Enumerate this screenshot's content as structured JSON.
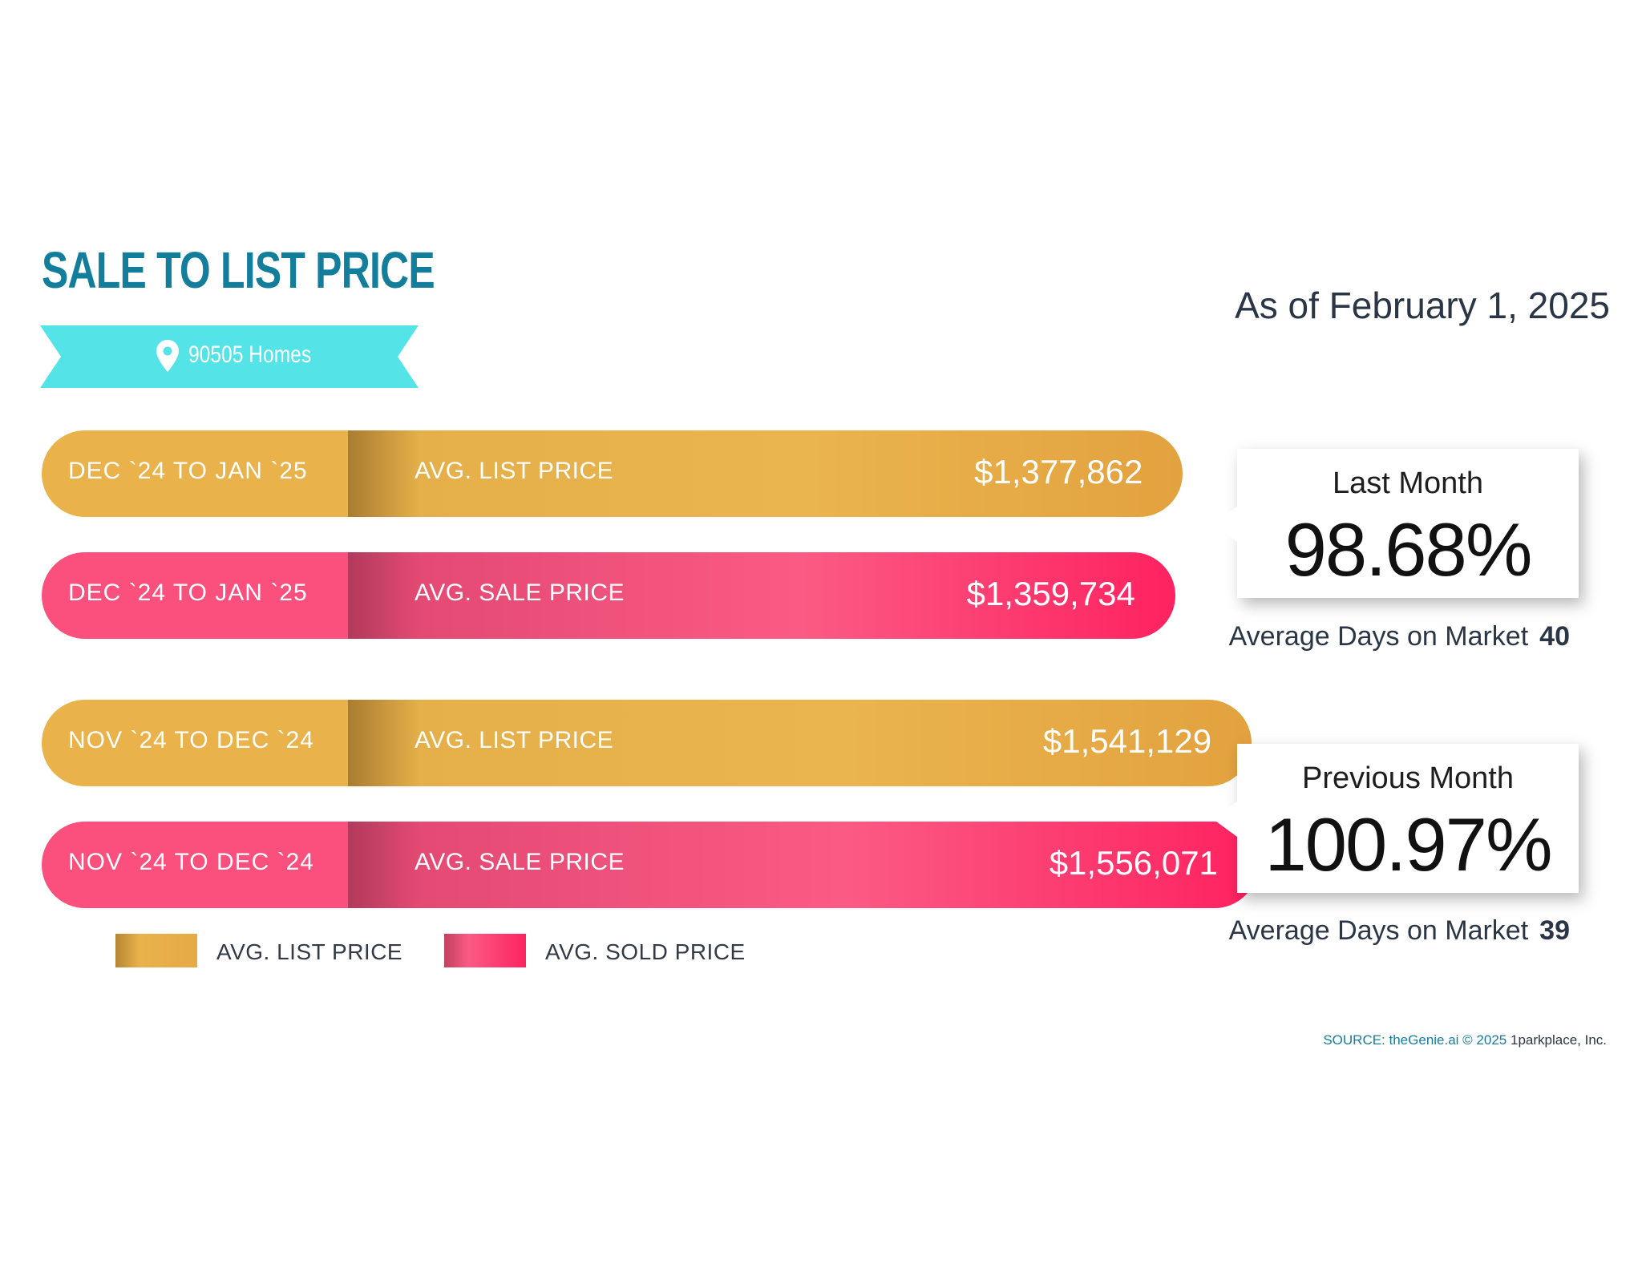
{
  "title": "SALE TO LIST PRICE",
  "location": {
    "label": "90505 Homes",
    "icon": "map-pin-icon"
  },
  "as_of": "As of February 1, 2025",
  "colors": {
    "list": "#e9b24b",
    "sale": "#fb4f7d",
    "title": "#137d9c",
    "ribbon": "#54e3e6"
  },
  "chart_data": {
    "type": "bar",
    "orientation": "horizontal",
    "title": "SALE TO LIST PRICE",
    "bars": [
      {
        "period": "DEC `24 TO JAN `25",
        "label": "AVG. LIST PRICE",
        "value": 1377862,
        "display": "$1,377,862",
        "kind": "list"
      },
      {
        "period": "DEC `24 TO JAN `25",
        "label": "AVG. SALE PRICE",
        "value": 1359734,
        "display": "$1,359,734",
        "kind": "sale"
      },
      {
        "period": "NOV `24 TO DEC `24",
        "label": "AVG. LIST PRICE",
        "value": 1541129,
        "display": "$1,541,129",
        "kind": "list"
      },
      {
        "period": "NOV `24 TO DEC `24",
        "label": "AVG. SALE PRICE",
        "value": 1556071,
        "display": "$1,556,071",
        "kind": "sale"
      }
    ],
    "legend": [
      {
        "name": "AVG. LIST PRICE",
        "kind": "list"
      },
      {
        "name": "AVG. SOLD PRICE",
        "kind": "sale"
      }
    ]
  },
  "callouts": [
    {
      "label": "Last Month",
      "value": "98.68%",
      "dom_label": "Average Days on Market",
      "dom_value": "40"
    },
    {
      "label": "Previous Month",
      "value": "100.97%",
      "dom_label": "Average Days on Market",
      "dom_value": "39"
    }
  ],
  "source": {
    "prefix": "SOURCE: theGenie.ai © 2025",
    "company": "1parkplace, Inc."
  }
}
